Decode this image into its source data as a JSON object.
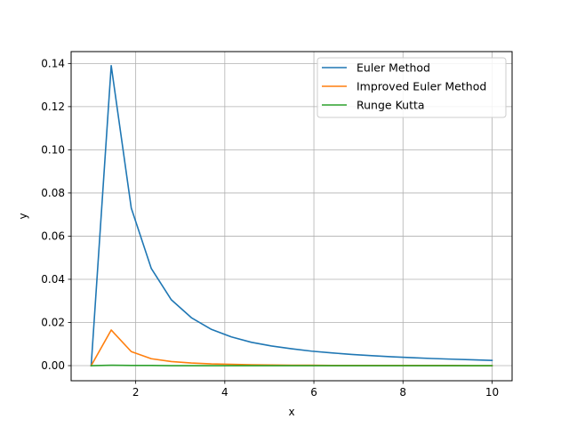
{
  "chart_data": {
    "type": "line",
    "title": "",
    "xlabel": "x",
    "ylabel": "y",
    "xlim": [
      0.55,
      10.45
    ],
    "ylim": [
      -0.007,
      0.1455
    ],
    "xticks": [
      2,
      4,
      6,
      8,
      10
    ],
    "xtick_labels": [
      "2",
      "4",
      "6",
      "8",
      "10"
    ],
    "yticks": [
      0.0,
      0.02,
      0.04,
      0.06,
      0.08,
      0.1,
      0.12,
      0.14
    ],
    "ytick_labels": [
      "0.00",
      "0.02",
      "0.04",
      "0.06",
      "0.08",
      "0.10",
      "0.12",
      "0.14"
    ],
    "grid": true,
    "legend_position": "upper right",
    "x": [
      1.0,
      1.45,
      1.9,
      2.35,
      2.8,
      3.25,
      3.7,
      4.15,
      4.6,
      5.05,
      5.5,
      5.95,
      6.4,
      6.85,
      7.3,
      7.75,
      8.2,
      8.65,
      9.1,
      9.55,
      10.0
    ],
    "series": [
      {
        "name": "Euler Method",
        "color": "#1f77b4",
        "values": [
          0.0,
          0.139,
          0.073,
          0.045,
          0.0305,
          0.0222,
          0.0168,
          0.0133,
          0.0108,
          0.0091,
          0.0078,
          0.0067,
          0.0059,
          0.0052,
          0.0046,
          0.0041,
          0.0037,
          0.0033,
          0.003,
          0.0027,
          0.0024
        ]
      },
      {
        "name": "Improved Euler Method",
        "color": "#ff7f0e",
        "values": [
          0.0,
          0.0165,
          0.0065,
          0.0032,
          0.0019,
          0.0012,
          0.0008,
          0.0006,
          0.0004,
          0.0003,
          0.0002,
          0.0002,
          0.0001,
          0.0001,
          0.0001,
          0.0001,
          0.0001,
          0.0001,
          0.0001,
          0.0,
          0.0
        ]
      },
      {
        "name": "Runge Kutta",
        "color": "#2ca02c",
        "values": [
          0.0,
          0.0002,
          0.0001,
          0.0001,
          0.0,
          0.0,
          0.0,
          0.0,
          0.0,
          0.0,
          0.0,
          0.0,
          0.0,
          0.0,
          0.0,
          0.0,
          0.0,
          0.0,
          0.0,
          0.0,
          0.0
        ]
      }
    ]
  }
}
